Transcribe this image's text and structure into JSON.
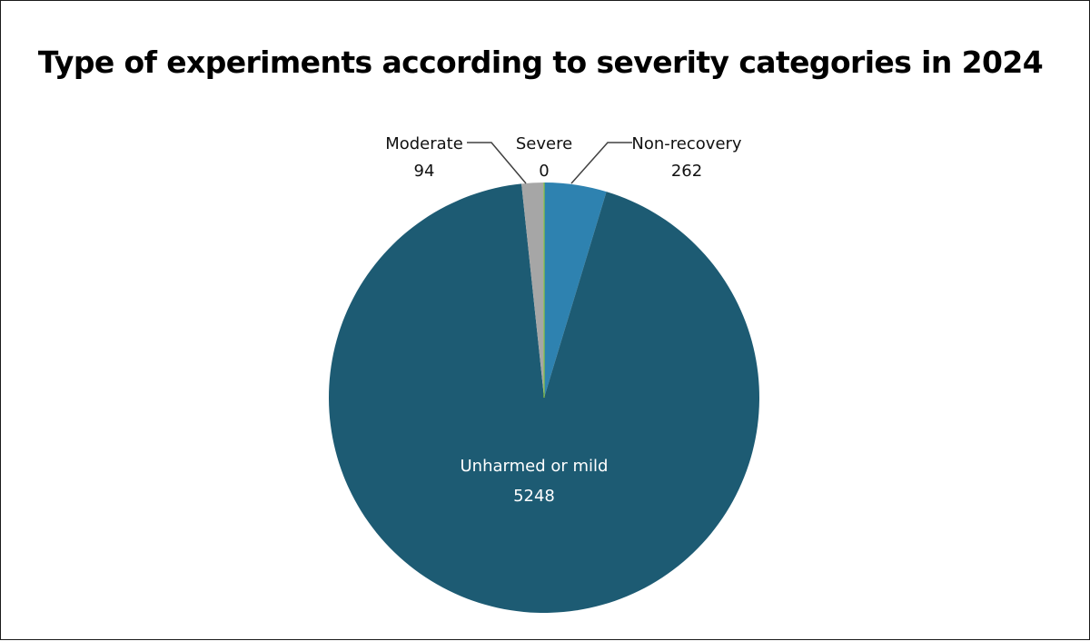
{
  "chart_data": {
    "type": "pie",
    "title": "Type of experiments according to severity categories in 2024",
    "slices": [
      {
        "label": "Non-recovery",
        "value": 262,
        "color": "#2e82b0"
      },
      {
        "label": "Unharmed or mild",
        "value": 5248,
        "color": "#1d5b73"
      },
      {
        "label": "Moderate",
        "value": 94,
        "color": "#a6a6a6"
      },
      {
        "label": "Severe",
        "value": 0,
        "color": "#8ec43f"
      }
    ],
    "start_angle": "12 o'clock, clockwise",
    "legend": "none"
  }
}
